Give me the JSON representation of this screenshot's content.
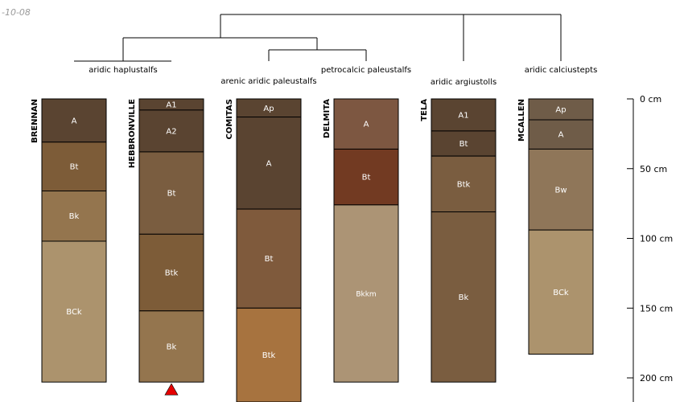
{
  "corner_text": "-10-08",
  "colors": {
    "line": "#000000",
    "marker": "#e60000",
    "label_light": "#ffffff"
  },
  "groups": [
    {
      "label": "aridic haplustalfs"
    },
    {
      "label": "arenic aridic paleustalfs"
    },
    {
      "label": "petrocalcic paleustalfs"
    },
    {
      "label": "aridic argiustolls"
    },
    {
      "label": "aridic calciustepts"
    }
  ],
  "profiles": [
    {
      "name": "BRENNAN",
      "horizons": [
        {
          "name": "A",
          "top": 0,
          "bottom": 31,
          "color": "#5a4431"
        },
        {
          "name": "Bt",
          "top": 31,
          "bottom": 66,
          "color": "#7d5c38"
        },
        {
          "name": "Bk",
          "top": 66,
          "bottom": 102,
          "color": "#94754e"
        },
        {
          "name": "BCk",
          "top": 102,
          "bottom": 203,
          "color": "#ac936d"
        }
      ]
    },
    {
      "name": "HEBBRONVILLE",
      "horizons": [
        {
          "name": "A1",
          "top": 0,
          "bottom": 8,
          "color": "#5a4431"
        },
        {
          "name": "A2",
          "top": 8,
          "bottom": 38,
          "color": "#5a4431"
        },
        {
          "name": "Bt",
          "top": 38,
          "bottom": 97,
          "color": "#7a5d40"
        },
        {
          "name": "Btk",
          "top": 97,
          "bottom": 152,
          "color": "#7d5c38"
        },
        {
          "name": "Bk",
          "top": 152,
          "bottom": 203,
          "color": "#94754e"
        }
      ]
    },
    {
      "name": "COMITAS",
      "horizons": [
        {
          "name": "Ap",
          "top": 0,
          "bottom": 13,
          "color": "#5a4431"
        },
        {
          "name": "A",
          "top": 13,
          "bottom": 79,
          "color": "#5a4431"
        },
        {
          "name": "Bt",
          "top": 79,
          "bottom": 150,
          "color": "#7f5a3c"
        },
        {
          "name": "Btk",
          "top": 150,
          "bottom": 220,
          "color": "#a7733f"
        }
      ]
    },
    {
      "name": "DELMITA",
      "horizons": [
        {
          "name": "A",
          "top": 0,
          "bottom": 36,
          "color": "#7d5741"
        },
        {
          "name": "Bt",
          "top": 36,
          "bottom": 76,
          "color": "#723a22"
        },
        {
          "name": "Bkkm",
          "top": 76,
          "bottom": 203,
          "color": "#ac9475"
        }
      ]
    },
    {
      "name": "TELA",
      "horizons": [
        {
          "name": "A1",
          "top": 0,
          "bottom": 23,
          "color": "#5a4431"
        },
        {
          "name": "Bt",
          "top": 23,
          "bottom": 41,
          "color": "#5a4431"
        },
        {
          "name": "Btk",
          "top": 41,
          "bottom": 81,
          "color": "#7a5d40"
        },
        {
          "name": "Bk",
          "top": 81,
          "bottom": 203,
          "color": "#7a5d40"
        }
      ]
    },
    {
      "name": "MCALLEN",
      "horizons": [
        {
          "name": "Ap",
          "top": 0,
          "bottom": 15,
          "color": "#6f5c48"
        },
        {
          "name": "A",
          "top": 15,
          "bottom": 36,
          "color": "#6f5c48"
        },
        {
          "name": "Bw",
          "top": 36,
          "bottom": 94,
          "color": "#8f7659"
        },
        {
          "name": "BCk",
          "top": 94,
          "bottom": 183,
          "color": "#ac936d"
        }
      ]
    }
  ],
  "depth_axis": {
    "unit": "cm",
    "ticks": [
      {
        "value": 0,
        "label": "0 cm"
      },
      {
        "value": 50,
        "label": "50 cm"
      },
      {
        "value": 100,
        "label": "100 cm"
      },
      {
        "value": 150,
        "label": "150 cm"
      },
      {
        "value": 200,
        "label": "200 cm"
      }
    ]
  },
  "truncation_marker": {
    "profile": "HEBBRONVILLE",
    "shape": "triangle-up"
  }
}
